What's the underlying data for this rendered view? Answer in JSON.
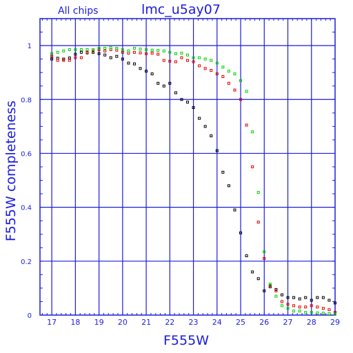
{
  "chart_data": {
    "type": "scatter",
    "title": "lmc_u5ay07",
    "subtitle": "All chips",
    "xlabel": "F555W",
    "ylabel": "F555W completeness",
    "xlim": [
      16.5,
      29.0
    ],
    "ylim": [
      0,
      1.1
    ],
    "xticks": [
      "17",
      "18",
      "19",
      "20",
      "21",
      "22",
      "23",
      "24",
      "25",
      "26",
      "27",
      "28",
      "29"
    ],
    "yticks": [
      "0",
      "0.2",
      "0.4",
      "0.6",
      "0.8",
      "1"
    ],
    "grid": true,
    "colors": {
      "axis": "#1a1adc",
      "grid": "#1a1adc",
      "background": "#ffffff"
    },
    "series": [
      {
        "color": "#000000",
        "x": [
          17.0,
          17.25,
          17.5,
          17.75,
          18.0,
          18.25,
          18.5,
          18.75,
          19.0,
          19.25,
          19.5,
          19.75,
          20.0,
          20.25,
          20.5,
          20.75,
          21.0,
          21.25,
          21.5,
          21.75,
          22.0,
          22.25,
          22.5,
          22.75,
          23.0,
          23.25,
          23.5,
          23.75,
          24.0,
          24.25,
          24.5,
          24.75,
          25.0,
          25.25,
          25.5,
          25.75,
          26.0,
          26.25,
          26.5,
          26.75,
          27.0,
          27.25,
          27.5,
          27.75,
          28.0,
          28.25,
          28.5,
          28.75,
          29.0
        ],
        "y": [
          0.95,
          0.953,
          0.95,
          0.954,
          0.968,
          0.975,
          0.973,
          0.975,
          0.97,
          0.965,
          0.955,
          0.96,
          0.95,
          0.935,
          0.932,
          0.915,
          0.905,
          0.895,
          0.86,
          0.85,
          0.86,
          0.825,
          0.8,
          0.79,
          0.77,
          0.73,
          0.7,
          0.665,
          0.61,
          0.53,
          0.48,
          0.39,
          0.305,
          0.22,
          0.16,
          0.135,
          0.09,
          0.105,
          0.095,
          0.075,
          0.065,
          0.065,
          0.06,
          0.065,
          0.055,
          0.065,
          0.065,
          0.055,
          0.045
        ]
      },
      {
        "color": "#e00000",
        "x": [
          17.0,
          17.25,
          17.5,
          17.75,
          18.0,
          18.25,
          18.5,
          18.75,
          19.0,
          19.25,
          19.5,
          19.75,
          20.0,
          20.25,
          20.5,
          20.75,
          21.0,
          21.25,
          21.5,
          21.75,
          22.0,
          22.25,
          22.5,
          22.75,
          23.0,
          23.25,
          23.5,
          23.75,
          24.0,
          24.25,
          24.5,
          24.75,
          25.0,
          25.25,
          25.5,
          25.75,
          26.0,
          26.25,
          26.5,
          26.75,
          27.0,
          27.25,
          27.5,
          27.75,
          28.0,
          28.25,
          28.5,
          28.75,
          29.0
        ],
        "y": [
          0.96,
          0.945,
          0.945,
          0.945,
          0.955,
          0.955,
          0.975,
          0.98,
          0.985,
          0.98,
          0.985,
          0.983,
          0.975,
          0.972,
          0.975,
          0.973,
          0.97,
          0.972,
          0.968,
          0.945,
          0.942,
          0.94,
          0.955,
          0.945,
          0.94,
          0.925,
          0.915,
          0.908,
          0.895,
          0.885,
          0.86,
          0.835,
          0.8,
          0.705,
          0.55,
          0.345,
          0.21,
          0.11,
          0.09,
          0.05,
          0.04,
          0.035,
          0.03,
          0.03,
          0.035,
          0.03,
          0.025,
          0.02,
          0.01
        ]
      },
      {
        "color": "#00d000",
        "x": [
          17.0,
          17.25,
          17.5,
          17.75,
          18.0,
          18.25,
          18.5,
          18.75,
          19.0,
          19.25,
          19.5,
          19.75,
          20.0,
          20.25,
          20.5,
          20.75,
          21.0,
          21.25,
          21.5,
          21.75,
          22.0,
          22.25,
          22.5,
          22.75,
          23.0,
          23.25,
          23.5,
          23.75,
          24.0,
          24.25,
          24.5,
          24.75,
          25.0,
          25.25,
          25.5,
          25.75,
          26.0,
          26.25,
          26.5,
          26.75,
          27.0,
          27.25,
          27.5,
          27.75,
          28.0,
          28.25,
          28.5,
          28.75,
          29.0
        ],
        "y": [
          0.97,
          0.975,
          0.98,
          0.985,
          0.985,
          0.985,
          0.985,
          0.985,
          0.99,
          0.99,
          0.992,
          0.99,
          0.985,
          0.98,
          0.99,
          0.987,
          0.985,
          0.983,
          0.982,
          0.98,
          0.975,
          0.97,
          0.972,
          0.965,
          0.955,
          0.955,
          0.95,
          0.945,
          0.935,
          0.92,
          0.905,
          0.895,
          0.87,
          0.83,
          0.68,
          0.455,
          0.235,
          0.115,
          0.07,
          0.035,
          0.025,
          0.015,
          0.015,
          0.01,
          0.01,
          0.008,
          0.007,
          0.005,
          0.003
        ]
      }
    ]
  }
}
